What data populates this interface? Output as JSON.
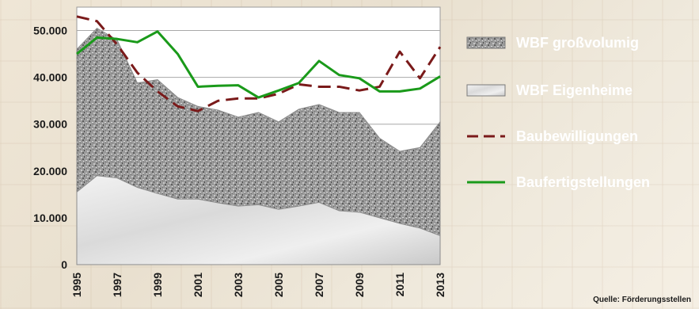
{
  "chart_data": {
    "type": "area",
    "x": [
      1995,
      1996,
      1997,
      1998,
      1999,
      2000,
      2001,
      2002,
      2003,
      2004,
      2005,
      2006,
      2007,
      2008,
      2009,
      2010,
      2011,
      2012,
      2013
    ],
    "x_tick_labels": [
      "1995",
      "1997",
      "1999",
      "2001",
      "2003",
      "2005",
      "2007",
      "2009",
      "2011",
      "2013"
    ],
    "ylim": [
      0,
      55000
    ],
    "y_tick_values": [
      0,
      10000,
      20000,
      30000,
      40000,
      50000
    ],
    "y_tick_labels": [
      "0",
      "10.000",
      "20.000",
      "30.000",
      "40.000",
      "50.000"
    ],
    "grid": true,
    "legend_position": "right",
    "series": [
      {
        "name": "WBF Eigenheime",
        "kind": "area",
        "color": "#e8e8e8",
        "values": [
          15500,
          19000,
          18500,
          16500,
          15200,
          14000,
          14000,
          13200,
          12500,
          12800,
          11800,
          12500,
          13300,
          11500,
          11200,
          10000,
          8800,
          7800,
          6200
        ]
      },
      {
        "name": "WBF großvolumig",
        "kind": "area",
        "color": "#8a8a8a",
        "values": [
          46000,
          50500,
          48000,
          38800,
          39500,
          35700,
          33800,
          33000,
          31500,
          32500,
          30500,
          33200,
          34200,
          32500,
          32500,
          27000,
          24200,
          25000,
          30500
        ]
      },
      {
        "name": "Baubewilligungen",
        "kind": "line",
        "color": "#7a1a1a",
        "values": [
          53000,
          52000,
          47000,
          41000,
          37000,
          33800,
          32800,
          35000,
          35500,
          35500,
          36500,
          38500,
          38000,
          38000,
          37200,
          38000,
          45500,
          39800,
          46500
        ]
      },
      {
        "name": "Baufertigstellungen",
        "kind": "line",
        "color": "#1a9a1a",
        "values": [
          45000,
          48500,
          48200,
          47500,
          49800,
          45000,
          38000,
          38200,
          38300,
          35700,
          37200,
          38800,
          43500,
          40500,
          39800,
          37000,
          37000,
          37600,
          40200
        ]
      }
    ],
    "source": "Quelle: Förderungsstellen"
  }
}
